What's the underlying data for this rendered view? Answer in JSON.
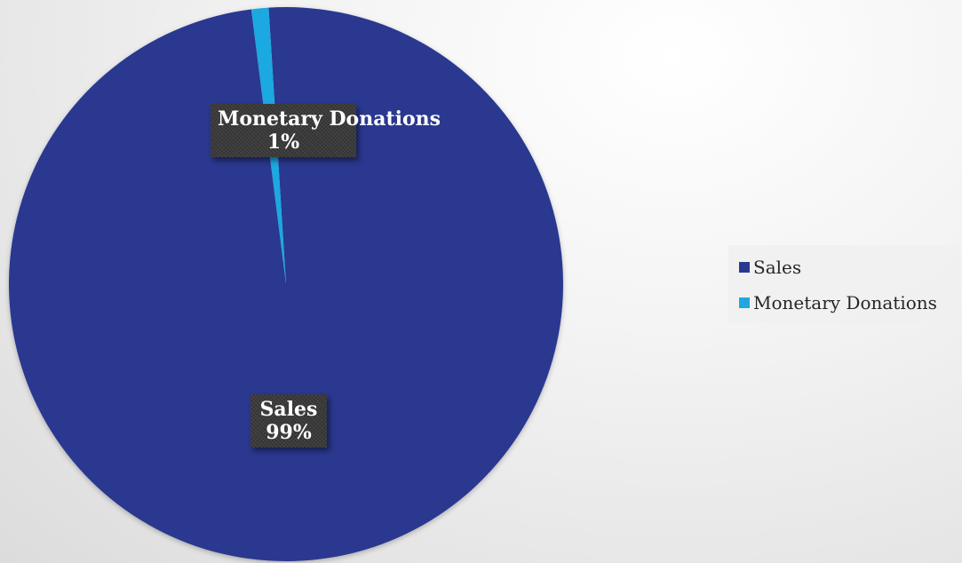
{
  "chart_data": {
    "type": "pie",
    "categories": [
      "Sales",
      "Monetary Donations"
    ],
    "values": [
      99,
      1
    ],
    "colors": [
      "#2a3990",
      "#1fa8e0"
    ],
    "labels": [
      {
        "category": "Sales",
        "percent": "99%"
      },
      {
        "category": "Monetary Donations",
        "percent": "1%"
      }
    ],
    "legend": {
      "position": "right",
      "items": [
        {
          "label": "Sales",
          "color": "#2a3990"
        },
        {
          "label": "Monetary Donations",
          "color": "#1fa8e0"
        }
      ]
    }
  }
}
